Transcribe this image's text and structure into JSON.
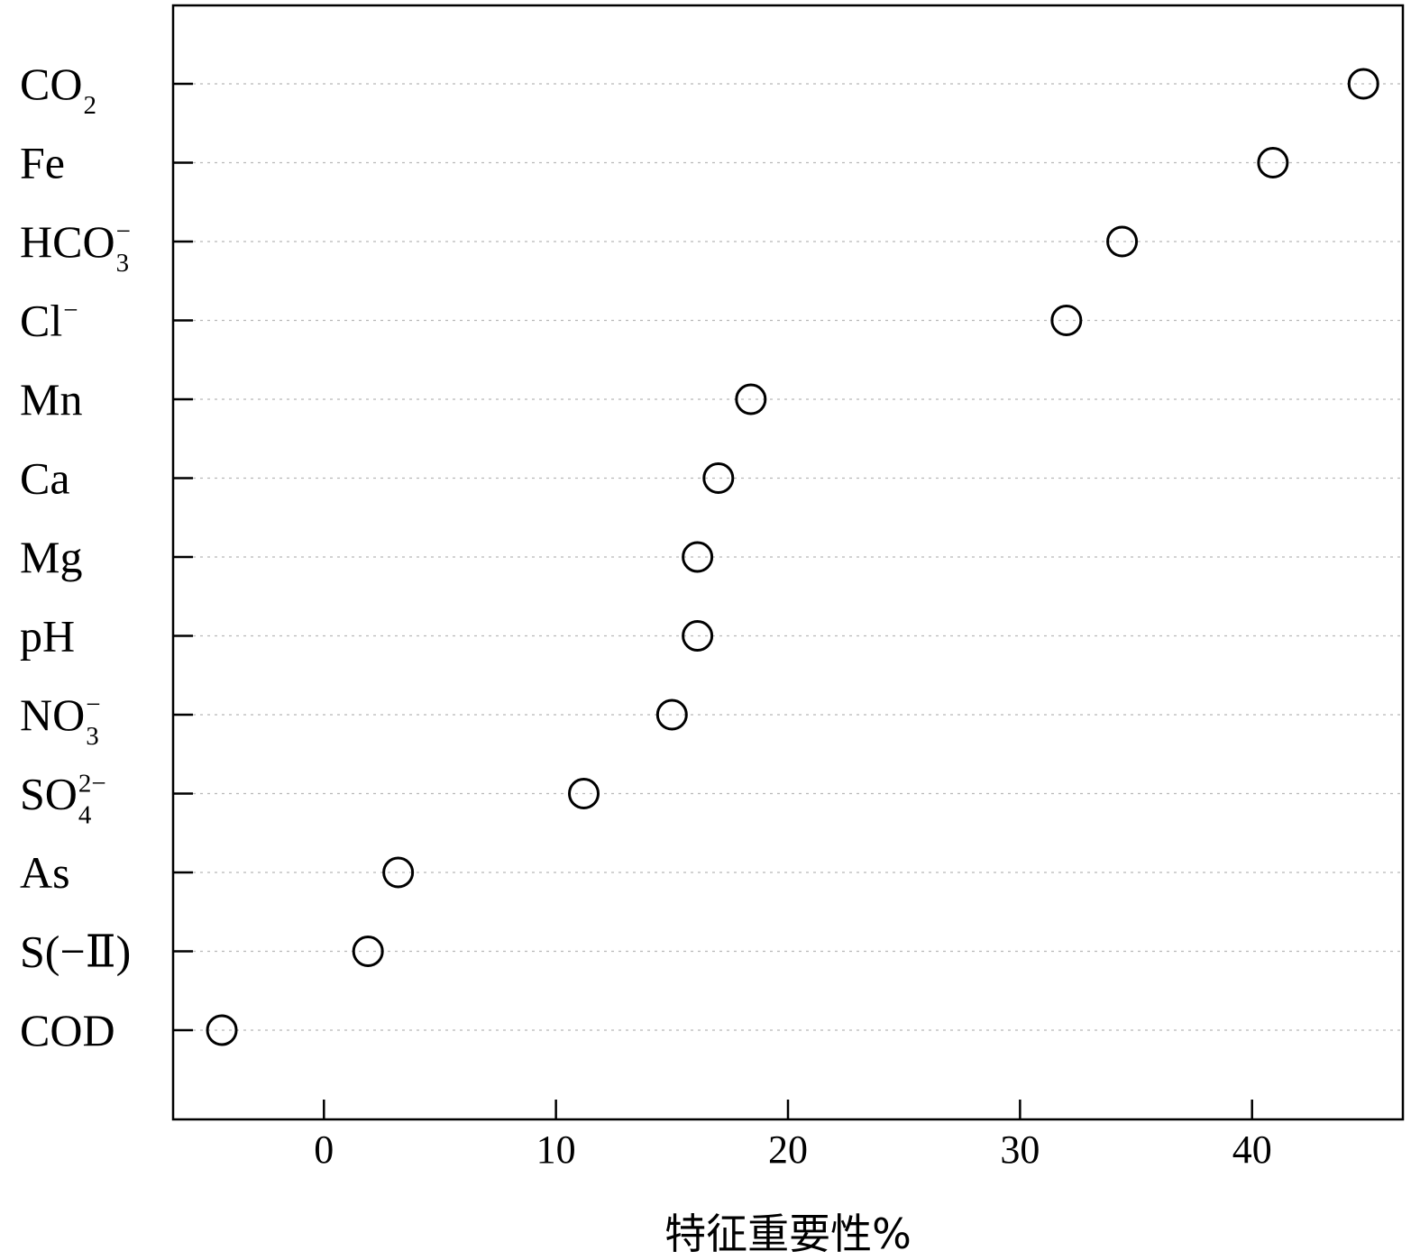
{
  "chart_data": {
    "type": "scatter",
    "xlabel": "特征重要性%",
    "ylabel": "",
    "xlim": [
      -6.5,
      46.5
    ],
    "xticks": [
      0,
      10,
      20,
      30,
      40
    ],
    "grid": "horizontal dotted",
    "legend": "none",
    "marker": "open circle",
    "categories": [
      {
        "base": "CO",
        "sub": "2",
        "sup": "",
        "value": 44.8
      },
      {
        "base": "Fe",
        "sub": "",
        "sup": "",
        "value": 40.9
      },
      {
        "base": "HCO",
        "sub": "3",
        "sup": "−",
        "value": 34.4
      },
      {
        "base": "Cl",
        "sub": "",
        "sup": "−",
        "value": 32.0
      },
      {
        "base": "Mn",
        "sub": "",
        "sup": "",
        "value": 18.4
      },
      {
        "base": "Ca",
        "sub": "",
        "sup": "",
        "value": 17.0
      },
      {
        "base": "Mg",
        "sub": "",
        "sup": "",
        "value": 16.1
      },
      {
        "base": "pH",
        "sub": "",
        "sup": "",
        "value": 16.1
      },
      {
        "base": "NO",
        "sub": "3",
        "sup": "−",
        "value": 15.0
      },
      {
        "base": "SO",
        "sub": "4",
        "sup": "2−",
        "value": 11.2
      },
      {
        "base": "As",
        "sub": "",
        "sup": "",
        "value": 3.2
      },
      {
        "base": "S(−Ⅱ)",
        "sub": "",
        "sup": "",
        "value": 1.9
      },
      {
        "base": "COD",
        "sub": "",
        "sup": "",
        "value": -4.4
      }
    ]
  }
}
